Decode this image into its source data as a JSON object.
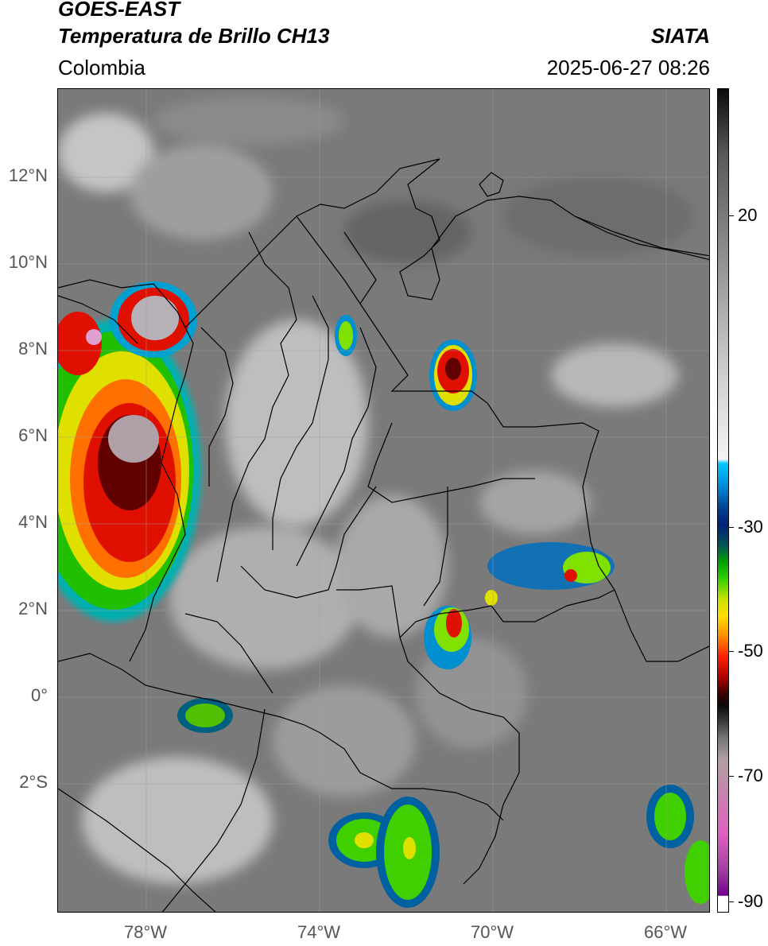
{
  "header": {
    "line1": "GOES-EAST",
    "line2": "Temperatura de Brillo CH13",
    "region": "Colombia",
    "source": "SIATA",
    "datetime": "2025-06-27 08:26"
  },
  "map": {
    "lat_labels": [
      "12°N",
      "10°N",
      "8°N",
      "6°N",
      "4°N",
      "2°N",
      "0°",
      "2°S"
    ],
    "lon_labels": [
      "78°W",
      "74°W",
      "70°W",
      "66°W"
    ]
  },
  "colorbar": {
    "tick_labels": [
      "20",
      "-30",
      "-50",
      "-70",
      "-90"
    ]
  },
  "colors": {
    "warm_surface": "#7a7a7a",
    "cold_cloud": "#ff2000",
    "border": "#000000"
  }
}
